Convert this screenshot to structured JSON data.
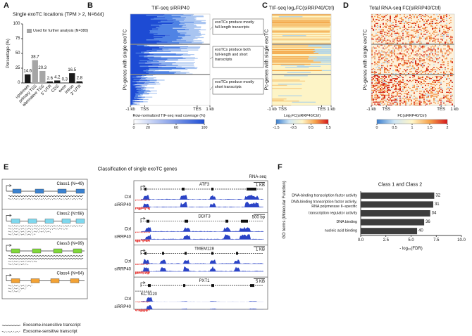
{
  "panel_a": {
    "letter": "A",
    "title": "Single exoTC locations (TPM > 2, N=644)",
    "y_label": "Percentage (%)",
    "legend": "Used for further analysis (N=380)",
    "legend_color": "#a6a6a6",
    "categories": [
      "upstream",
      "primary TSS",
      "alternative TSS",
      "5' UTR",
      "CDS",
      "exon",
      "intron",
      "3' UTR"
    ],
    "values": [
      14.6,
      38.7,
      20.3,
      2.6,
      4.2,
      0.3,
      16.5,
      2.8
    ],
    "colors": [
      "#1a1a1a",
      "#a6a6a6",
      "#a6a6a6",
      "#1a1a1a",
      "#1a1a1a",
      "#1a1a1a",
      "#1a1a1a",
      "#1a1a1a"
    ],
    "ylim": [
      0,
      100
    ],
    "yticks": [
      0,
      25,
      50,
      75,
      100
    ]
  },
  "panel_b": {
    "letter": "B",
    "title": "TIF-seq siRRP40",
    "y_label": "Pc-genes with single exoTC",
    "x_ticks": [
      "-1 kb",
      "TSS",
      "TES",
      "1 kb"
    ],
    "colorbar": {
      "label": "Row-normalized TIF-seq read coverage (%)",
      "lim": [
        0,
        100
      ],
      "ticks": [
        0,
        20,
        60,
        100
      ],
      "colors": [
        "#ffffff",
        "#1f4fd6"
      ]
    },
    "annotations": [
      [
        "exoTCs produce mostly",
        "full-length transcripts"
      ],
      [
        "exoTCs produce both",
        "full-length and short",
        "transcripts"
      ],
      [
        "exoTCs produce mostly",
        "short transcripts"
      ]
    ]
  },
  "panel_c": {
    "letter": "C",
    "title": "TIF-seq log₂FC(siRRP40/Ctrl)",
    "y_label": "Pc-genes with single exoTC",
    "x_ticks": [
      "-1 kb",
      "TSS",
      "TES",
      "1 kb"
    ],
    "colorbar": {
      "label": "Log₂FC(siRRP40/Ctrl)",
      "lim": [
        -1.5,
        1.5
      ],
      "ticks": [
        -1.5,
        -0.5,
        0.5,
        1.5
      ],
      "colors": [
        "#3b7fd0",
        "#cfe6f4",
        "#fff6c8",
        "#f6a14a",
        "#d7191c"
      ]
    }
  },
  "panel_d": {
    "letter": "D",
    "title": "Total RNA-seq FC(siRRP40/Ctrl)",
    "y_label": "Pc-genes with single exoTC",
    "x_ticks": [
      "-1 kb",
      "TSS",
      "TES",
      "1 kb"
    ],
    "colorbar": {
      "label": "FC(siRRP40/Ctrl)",
      "lim": [
        0,
        2
      ],
      "ticks": [
        0,
        0.5,
        1,
        1.5,
        2
      ],
      "colors": [
        "#3b7fd0",
        "#cfe6f4",
        "#fff6c8",
        "#f6a14a",
        "#d7191c"
      ]
    }
  },
  "panel_e": {
    "letter": "E",
    "title": "Classification of single exoTC genes",
    "track_label": "RNA-seq",
    "classes": [
      "Class1 (N=49)",
      "Class2 (N=68)",
      "Class3 (N=99)",
      "Class4 (N=64)"
    ],
    "tracks": [
      {
        "gene": "ATF3",
        "scale": "1 KB",
        "samples": [
          "Ctrl",
          "siRRP40"
        ]
      },
      {
        "gene": "DDIT3",
        "scale": "500 bp",
        "samples": [
          "Ctrl",
          "siRRP40"
        ]
      },
      {
        "gene": "TMEM128",
        "scale": "1 KB",
        "samples": [
          "Ctrl",
          "siRRP40"
        ]
      },
      {
        "gene": "PXT1",
        "scale": "5 KB",
        "samples": [
          "Ctrl",
          "siRRP40"
        ],
        "extra_gene": "KCTD20"
      }
    ],
    "legend": [
      "Exosome-insensitive transcript",
      "Exosome-sensitive transcript"
    ]
  },
  "panel_f": {
    "letter": "F",
    "title": "Class 1 and Class 2",
    "y_label": "GO terms (Molecular Function)",
    "x_label": "- log₁₀(FDR)",
    "categories": [
      [
        "DNA-binding transcription factor activity"
      ],
      [
        "DNA-binding transcription factor activity,",
        "RNA polymerase II–specific"
      ],
      [
        "transcription regulator activity"
      ],
      [
        "DNA binding"
      ],
      [
        "nucleic acid binding"
      ]
    ],
    "values": [
      7.3,
      7.2,
      6.9,
      6.3,
      5.6
    ],
    "counts": [
      32,
      31,
      34,
      36,
      40
    ],
    "color": "#3d3d3d",
    "xlim": [
      0,
      10
    ],
    "xticks": [
      {
        "value": 0,
        "label": "0.0"
      },
      2.5,
      {
        "value": 5,
        "label": "5.0"
      },
      7.5,
      {
        "value": 10,
        "label": "10.0"
      }
    ]
  }
}
